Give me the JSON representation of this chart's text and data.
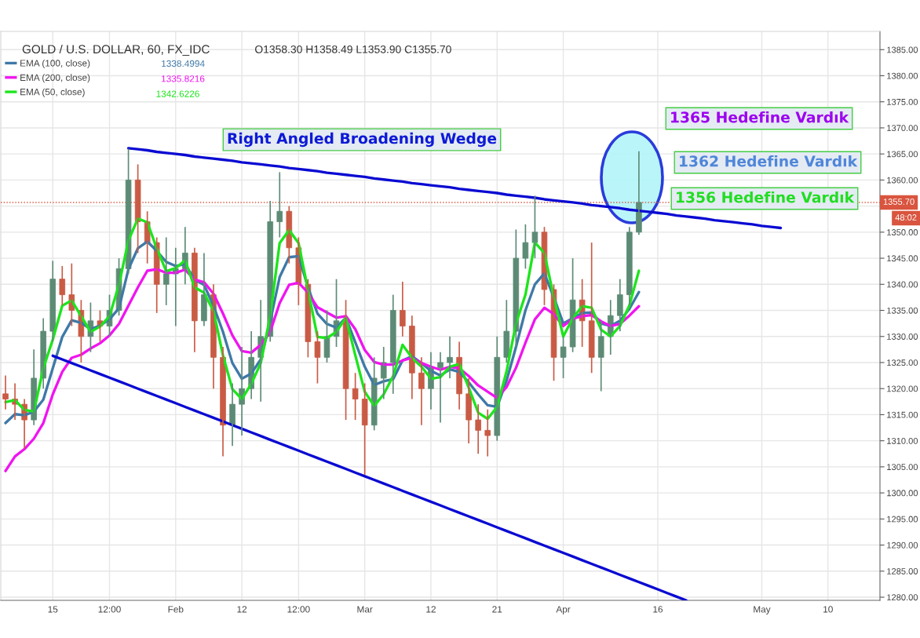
{
  "chart_data": {
    "type": "candlestick",
    "title": "GOLD / U.S. DOLLAR, 60, FX_IDC",
    "subtitle": "O1358.30 H1358.49 L1353.90 C1355.70",
    "categories": [
      null,
      null,
      null,
      null,
      null,
      "15",
      null,
      null,
      null,
      null,
      null,
      "12:00",
      null,
      null,
      null,
      null,
      null,
      null,
      "Feb",
      null,
      null,
      null,
      null,
      null,
      null,
      "12",
      null,
      null,
      null,
      null,
      null,
      "12:00",
      null,
      null,
      null,
      null,
      null,
      null,
      "Mar",
      null,
      null,
      null,
      null,
      null,
      null,
      "12",
      null,
      null,
      null,
      null,
      null,
      null,
      "21",
      null,
      null,
      null,
      null,
      null,
      null,
      "Apr",
      null,
      null,
      null,
      null,
      null,
      null,
      null,
      null,
      null,
      "16",
      null,
      null,
      null,
      null,
      null,
      null,
      null,
      null,
      null,
      null,
      "May",
      null,
      null,
      null,
      null,
      null,
      null,
      "10",
      null,
      null,
      null,
      null,
      null
    ],
    "ohlc": [
      [
        1319,
        1322.5,
        1316,
        1318
      ],
      [
        1318,
        1321,
        1314,
        1317
      ],
      [
        1317,
        1318,
        1308.5,
        1314
      ],
      [
        1314,
        1327.5,
        1313,
        1322
      ],
      [
        1322,
        1333.5,
        1320,
        1331
      ],
      [
        1331,
        1344.5,
        1329,
        1341
      ],
      [
        1341,
        1343.5,
        1336,
        1338
      ],
      [
        1338,
        1344,
        1332,
        1335
      ],
      [
        1335,
        1337,
        1325,
        1330
      ],
      [
        1330,
        1336.5,
        1327,
        1333
      ],
      [
        1333,
        1335,
        1329,
        1332
      ],
      [
        1332,
        1338,
        1330,
        1335
      ],
      [
        1335,
        1345,
        1334,
        1343
      ],
      [
        1343,
        1366,
        1342,
        1360
      ],
      [
        1360,
        1363,
        1346,
        1352
      ],
      [
        1352,
        1354,
        1344,
        1348
      ],
      [
        1348,
        1349,
        1334.5,
        1340
      ],
      [
        1340,
        1349,
        1336,
        1342
      ],
      [
        1342,
        1347,
        1332,
        1343
      ],
      [
        1343,
        1351,
        1340,
        1346
      ],
      [
        1346,
        1347,
        1327,
        1333
      ],
      [
        1333,
        1346,
        1332,
        1338
      ],
      [
        1338,
        1340,
        1320,
        1326
      ],
      [
        1326,
        1328,
        1307,
        1313
      ],
      [
        1313,
        1321,
        1309,
        1317
      ],
      [
        1317,
        1328,
        1311,
        1320
      ],
      [
        1320,
        1331,
        1318,
        1326
      ],
      [
        1326,
        1337,
        1317.5,
        1330
      ],
      [
        1330,
        1356,
        1329,
        1352
      ],
      [
        1352,
        1361.5,
        1349,
        1354
      ],
      [
        1354,
        1355,
        1344,
        1347
      ],
      [
        1347,
        1349,
        1336,
        1340
      ],
      [
        1340,
        1341,
        1326,
        1329
      ],
      [
        1329,
        1331,
        1321,
        1326
      ],
      [
        1326,
        1335,
        1325,
        1330
      ],
      [
        1330,
        1341,
        1328,
        1333
      ],
      [
        1333,
        1337,
        1314,
        1320
      ],
      [
        1320,
        1323,
        1314,
        1318
      ],
      [
        1318,
        1321,
        1303.5,
        1313
      ],
      [
        1313,
        1326,
        1312,
        1322
      ],
      [
        1322,
        1328,
        1318,
        1325
      ],
      [
        1325,
        1338,
        1319,
        1335
      ],
      [
        1335,
        1340.5,
        1330,
        1332
      ],
      [
        1332,
        1334,
        1318,
        1323
      ],
      [
        1323,
        1326,
        1313,
        1320
      ],
      [
        1320,
        1327,
        1316,
        1324
      ],
      [
        1324,
        1327,
        1313.5,
        1325
      ],
      [
        1325,
        1330,
        1322,
        1326
      ],
      [
        1326,
        1329,
        1316,
        1319
      ],
      [
        1319,
        1322,
        1309.5,
        1314
      ],
      [
        1314,
        1317,
        1307.5,
        1312
      ],
      [
        1312,
        1316,
        1307,
        1311
      ],
      [
        1311,
        1330,
        1310,
        1326
      ],
      [
        1326,
        1337,
        1325,
        1331
      ],
      [
        1331,
        1350.5,
        1328,
        1345
      ],
      [
        1345,
        1351.5,
        1343,
        1348
      ],
      [
        1348,
        1357,
        1345,
        1350
      ],
      [
        1350,
        1351,
        1336,
        1339
      ],
      [
        1339,
        1340,
        1321.5,
        1326
      ],
      [
        1326,
        1330,
        1322,
        1328
      ],
      [
        1328,
        1345,
        1327,
        1337
      ],
      [
        1337,
        1341,
        1328,
        1333
      ],
      [
        1333,
        1348,
        1323,
        1326
      ],
      [
        1326,
        1333,
        1319.5,
        1330
      ],
      [
        1330,
        1337,
        1326.5,
        1334
      ],
      [
        1334,
        1341,
        1331,
        1338
      ],
      [
        1338,
        1351,
        1336,
        1350
      ],
      [
        1350,
        1365.5,
        1349.5,
        1355.7
      ],
      null,
      null,
      null,
      null,
      null,
      null,
      null,
      null,
      null,
      null,
      null,
      null,
      null,
      null,
      null,
      null,
      null,
      null,
      null,
      null,
      null,
      null,
      null,
      null,
      null
    ],
    "colors": [
      "#c95b45",
      "#c95b45",
      "#c95b45",
      "#5d8b76",
      "#5d8b76",
      "#5d8b76",
      "#c95b45",
      "#c95b45",
      "#c95b45",
      "#5d8b76",
      "#c95b45",
      "#5d8b76",
      "#5d8b76",
      "#5d8b76",
      "#c95b45",
      "#c95b45",
      "#c95b45",
      "#5d8b76",
      "#5d8b76",
      "#5d8b76",
      "#c95b45",
      "#5d8b76",
      "#c95b45",
      "#c95b45",
      "#5d8b76",
      "#5d8b76",
      "#5d8b76",
      "#5d8b76",
      "#5d8b76",
      "#5d8b76",
      "#c95b45",
      "#c95b45",
      "#c95b45",
      "#c95b45",
      "#5d8b76",
      "#5d8b76",
      "#c95b45",
      "#c95b45",
      "#c95b45",
      "#5d8b76",
      "#5d8b76",
      "#5d8b76",
      "#c95b45",
      "#c95b45",
      "#c95b45",
      "#5d8b76",
      "#5d8b76",
      "#5d8b76",
      "#c95b45",
      "#c95b45",
      "#c95b45",
      "#c95b45",
      "#5d8b76",
      "#5d8b76",
      "#5d8b76",
      "#5d8b76",
      "#5d8b76",
      "#c95b45",
      "#c95b45",
      "#5d8b76",
      "#5d8b76",
      "#c95b45",
      "#c95b45",
      "#5d8b76",
      "#5d8b76",
      "#5d8b76",
      "#5d8b76",
      "#5d8b76",
      null,
      null,
      null,
      null,
      null,
      null,
      null,
      null,
      null,
      null,
      null,
      null,
      null,
      null,
      null,
      null,
      null,
      null,
      null,
      null,
      null,
      null,
      null,
      null,
      null
    ],
    "series": [
      {
        "name": "EMA (100, close)",
        "type": "line",
        "color": "#3f79a7",
        "values": [
          1313.4,
          1315.1,
          1314.9,
          1315.6,
          1317.9,
          1323.9,
          1329.9,
          1333.1,
          1332.6,
          1331.4,
          1332.1,
          1333.3,
          1335.4,
          1342.9,
          1346.9,
          1348.2,
          1346.4,
          1344.3,
          1343.5,
          1343.9,
          1340.9,
          1339.9,
          1335.9,
          1330.9,
          1324.9,
          1321.9,
          1322.9,
          1325.6,
          1332.9,
          1341.4,
          1345.2,
          1345.4,
          1339.4,
          1334.4,
          1332.4,
          1331.7,
          1333.6,
          1328.9,
          1324.2,
          1320.7,
          1321.4,
          1321.8,
          1325.4,
          1326.2,
          1324.9,
          1323.4,
          1322.5,
          1323.7,
          1323.2,
          1321.2,
          1318.9,
          1316.8,
          1316.5,
          1321.5,
          1328.0,
          1335.0,
          1340.0,
          1342.1,
          1337.5,
          1332.5,
          1333.5,
          1334.5,
          1334.6,
          1332.5,
          1332.0,
          1333.0,
          1335.3,
          1338.5,
          null,
          null,
          null,
          null,
          null,
          null,
          null,
          null,
          null,
          null,
          null,
          null,
          null,
          null,
          null,
          null,
          null,
          null,
          null,
          null,
          null,
          null,
          null,
          null,
          null
        ]
      },
      {
        "name": "EMA (200, close)",
        "type": "line",
        "color": "#f014f0",
        "values": [
          1304.2,
          1307.0,
          1308.4,
          1310.4,
          1313.4,
          1318.9,
          1323.2,
          1325.9,
          1326.5,
          1327.7,
          1328.7,
          1330.2,
          1332.4,
          1335.9,
          1339.4,
          1342.6,
          1342.9,
          1342.2,
          1342.2,
          1342.8,
          1340.9,
          1340.4,
          1338.2,
          1334.4,
          1330.2,
          1327.2,
          1326.9,
          1328.4,
          1330.9,
          1336.4,
          1339.9,
          1340.3,
          1338.4,
          1335.6,
          1334.6,
          1333.6,
          1333.9,
          1331.4,
          1327.4,
          1325.1,
          1324.6,
          1324.6,
          1325.4,
          1325.9,
          1324.9,
          1324.2,
          1323.6,
          1324.2,
          1323.9,
          1322.4,
          1320.6,
          1319.4,
          1318.2,
          1320.3,
          1324.0,
          1328.8,
          1333.3,
          1335.5,
          1334.3,
          1332.0,
          1333.4,
          1333.9,
          1334.1,
          1332.9,
          1332.0,
          1332.4,
          1334.0,
          1335.8,
          null,
          null,
          null,
          null,
          null,
          null,
          null,
          null,
          null,
          null,
          null,
          null,
          null,
          null,
          null,
          null,
          null,
          null,
          null,
          null,
          null,
          null,
          null,
          null,
          null
        ]
      },
      {
        "name": "EMA (50, close)",
        "type": "line",
        "color": "#1de41d",
        "values": [
          1317.4,
          1317.8,
          1315.9,
          1315.6,
          1323.9,
          1329.4,
          1335.9,
          1336.9,
          1333.9,
          1330.9,
          1331.9,
          1333.9,
          1339.9,
          1348.4,
          1352.6,
          1351.9,
          1346.9,
          1342.5,
          1343.1,
          1344.6,
          1339.4,
          1338.4,
          1334.9,
          1326.4,
          1319.9,
          1318.0,
          1320.9,
          1324.9,
          1333.9,
          1347.9,
          1350.4,
          1347.9,
          1338.9,
          1329.9,
          1329.7,
          1330.9,
          1333.6,
          1326.4,
          1319.4,
          1316.7,
          1318.9,
          1322.4,
          1328.4,
          1325.9,
          1324.2,
          1321.9,
          1322.2,
          1324.2,
          1324.7,
          1320.2,
          1315.4,
          1314.2,
          1316.5,
          1323.3,
          1332.5,
          1338.0,
          1348.0,
          1346.0,
          1337.5,
          1330.0,
          1333.5,
          1335.8,
          1335.5,
          1331.3,
          1330.0,
          1332.0,
          1336.0,
          1342.6,
          null,
          null,
          null,
          null,
          null,
          null,
          null,
          null,
          null,
          null,
          null,
          null,
          null,
          null,
          null,
          null,
          null,
          null,
          null,
          null,
          null,
          null,
          null,
          null,
          null
        ]
      },
      {
        "type": "line",
        "color": "#0a0ad2",
        "values": [
          null,
          null,
          null,
          null,
          null,
          null,
          null,
          null,
          null,
          null,
          null,
          null,
          null,
          1366.1,
          1365.9,
          1365.7,
          1365.4,
          1365.2,
          1365.0,
          1364.8,
          1364.5,
          1364.3,
          1364.1,
          1363.9,
          1363.7,
          1363.4,
          1363.2,
          1363.0,
          1362.8,
          1362.6,
          1362.3,
          1362.1,
          1361.9,
          1361.7,
          1361.4,
          1361.2,
          1361.0,
          1360.8,
          1360.6,
          1360.3,
          1360.1,
          1359.9,
          1359.7,
          1359.4,
          1359.2,
          1359.0,
          1358.8,
          1358.6,
          1358.3,
          1358.1,
          1357.9,
          1357.7,
          1357.5,
          1357.2,
          1357.0,
          1356.8,
          1356.6,
          1356.3,
          1356.1,
          1355.9,
          1355.7,
          1355.5,
          1355.2,
          1355.0,
          1354.8,
          1354.6,
          1354.3,
          1354.1,
          1353.9,
          1353.7,
          1353.5,
          1353.2,
          1353.0,
          1352.8,
          1352.6,
          1352.3,
          1352.1,
          1351.9,
          1351.7,
          1351.5,
          1351.2,
          1351.0,
          1350.8,
          null,
          null,
          null,
          null,
          null,
          null,
          null,
          null,
          null,
          null
        ]
      },
      {
        "type": "line",
        "color": "#0a0ad2",
        "values": [
          null,
          null,
          null,
          null,
          null,
          1326.3,
          1325.6,
          1324.9,
          1324.2,
          1323.5,
          1322.8,
          1322.1,
          1321.4,
          1320.7,
          1320.0,
          1319.3,
          1318.6,
          1317.9,
          1317.2,
          1316.5,
          1315.8,
          1315.1,
          1314.4,
          1313.7,
          1313.0,
          1312.3,
          1311.6,
          1310.9,
          1310.2,
          1309.5,
          1308.8,
          1308.1,
          1307.4,
          1306.7,
          1306.0,
          1305.3,
          1304.6,
          1303.9,
          1303.2,
          1302.5,
          1301.8,
          1301.1,
          1300.4,
          1299.7,
          1299.0,
          1298.3,
          1297.6,
          1296.9,
          1296.2,
          1295.5,
          1294.8,
          1294.1,
          1293.4,
          1292.7,
          1292.0,
          1291.3,
          1290.6,
          1289.9,
          1289.2,
          1288.5,
          1287.8,
          1287.1,
          1286.4,
          1285.7,
          1285.0,
          1284.3,
          1283.6,
          1282.9,
          1282.2,
          1281.5,
          1280.8,
          1280.1,
          1279.4,
          null,
          null,
          null,
          null,
          null,
          null,
          null,
          null,
          null,
          null,
          null,
          null,
          null,
          null,
          null,
          null,
          null,
          null,
          null,
          null
        ]
      }
    ],
    "ylim": [
      1279.4,
      1388.5
    ],
    "yticks": [
      {
        "value": 1280,
        "label": "1280.00"
      },
      {
        "value": 1285,
        "label": "1285.00"
      },
      {
        "value": 1290,
        "label": "1290.00"
      },
      {
        "value": 1295,
        "label": "1295.00"
      },
      {
        "value": 1300,
        "label": "1300.00"
      },
      {
        "value": 1305,
        "label": "1305.00"
      },
      {
        "value": 1310,
        "label": "1310.00"
      },
      {
        "value": 1315,
        "label": "1315.00"
      },
      {
        "value": 1320,
        "label": "1320.00"
      },
      {
        "value": 1325,
        "label": "1325.00"
      },
      {
        "value": 1330,
        "label": "1330.00"
      },
      {
        "value": 1335,
        "label": "1335.00"
      },
      {
        "value": 1340,
        "label": "1340.00"
      },
      {
        "value": 1345,
        "label": "1345.00"
      },
      {
        "value": 1350,
        "label": "1350.00"
      },
      {
        "value": 1355,
        "label": null
      },
      {
        "value": 1360,
        "label": "1360.00"
      },
      {
        "value": 1365,
        "label": "1365.00"
      },
      {
        "value": 1370,
        "label": "1370.00"
      },
      {
        "value": 1375,
        "label": "1375.00"
      },
      {
        "value": 1380,
        "label": "1380.00"
      },
      {
        "value": 1385,
        "label": "1385.00"
      }
    ],
    "ref_lines": [
      {
        "axis": "y",
        "value": 1355.7,
        "label": "1355.70",
        "color": "#d9553f",
        "line_style": "dotted"
      }
    ],
    "annotations": [
      "1338.4994",
      "1335.8216",
      "1342.6226",
      "48:02",
      "Right Angled Broadening Wedge",
      "1365 Hedefine Vardık",
      "1362 Hedefine Vardık",
      "1356 Hedefine Vardık"
    ],
    "grid": true,
    "legend": "top left"
  }
}
